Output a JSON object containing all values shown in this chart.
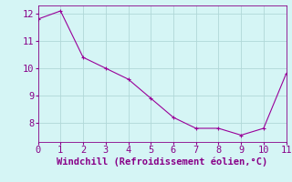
{
  "x": [
    0,
    1,
    2,
    3,
    4,
    5,
    6,
    7,
    8,
    9,
    10,
    11
  ],
  "y": [
    11.8,
    12.1,
    10.4,
    10.0,
    9.6,
    8.9,
    8.2,
    7.8,
    7.8,
    7.55,
    7.8,
    9.8
  ],
  "line_color": "#990099",
  "marker": "p",
  "marker_size": 2.5,
  "background_color": "#d5f5f5",
  "grid_color": "#b0d8d8",
  "xlabel": "Windchill (Refroidissement éolien,°C)",
  "xlabel_color": "#880088",
  "tick_color": "#880088",
  "xlim": [
    0,
    11
  ],
  "ylim": [
    7.3,
    12.3
  ],
  "xticks": [
    0,
    1,
    2,
    3,
    4,
    5,
    6,
    7,
    8,
    9,
    10,
    11
  ],
  "yticks": [
    8,
    9,
    10,
    11,
    12
  ],
  "xlabel_fontsize": 7.5,
  "tick_fontsize": 7.5
}
